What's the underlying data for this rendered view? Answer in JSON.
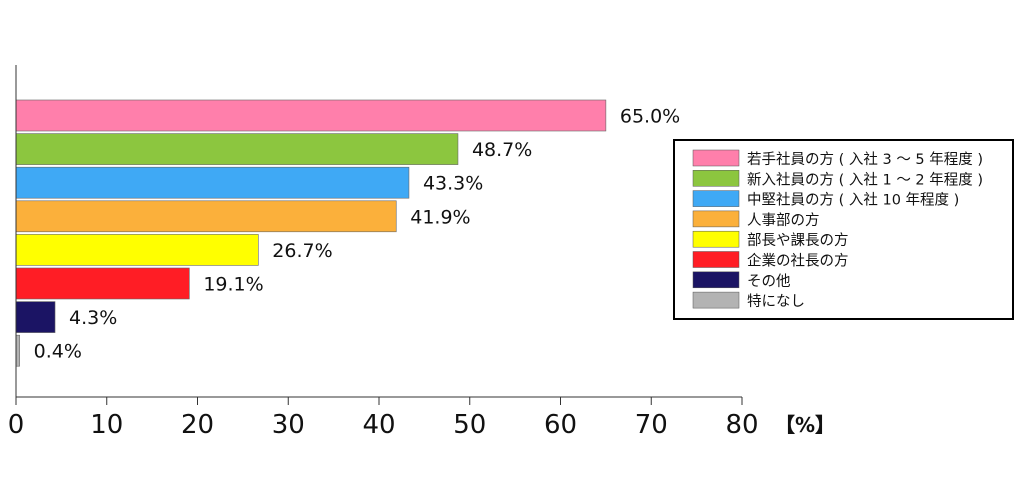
{
  "chart_data": {
    "type": "bar",
    "orientation": "horizontal",
    "categories": [
      "若手社員の方 ( 入社 3 ～ 5 年程度 )",
      "新入社員の方 ( 入社 1 ～ 2 年程度 )",
      "中堅社員の方 ( 入社 10 年程度 )",
      "人事部の方",
      "部長や課長の方",
      "企業の社長の方",
      "その他",
      "特になし"
    ],
    "values": [
      65.0,
      48.7,
      43.3,
      41.9,
      26.7,
      19.1,
      4.3,
      0.4
    ],
    "value_labels": [
      "65.0%",
      "48.7%",
      "43.3%",
      "41.9%",
      "26.7%",
      "19.1%",
      "4.3%",
      "0.4%"
    ],
    "colors": [
      "#ff7fab",
      "#8cc63f",
      "#3fa9f5",
      "#fbb03b",
      "#ffff00",
      "#ff1d25",
      "#1b1464",
      "#b3b3b3"
    ],
    "xlim": [
      0,
      80
    ],
    "xticks": [
      0,
      10,
      20,
      30,
      40,
      50,
      60,
      70,
      80
    ],
    "unit_label": "【%】",
    "legend_position": "right",
    "grid": false
  }
}
